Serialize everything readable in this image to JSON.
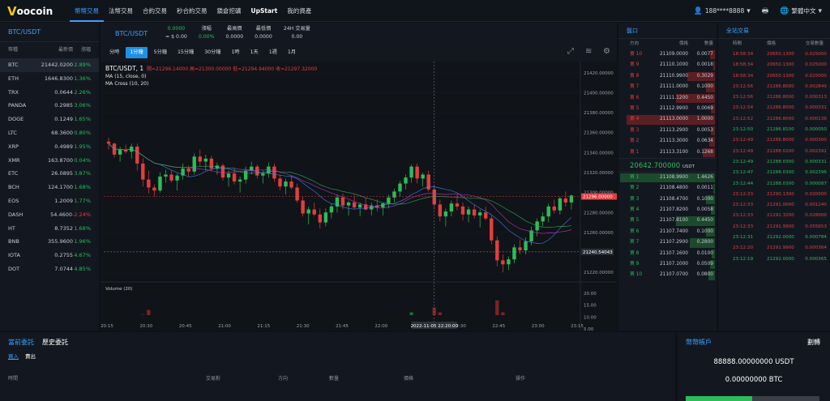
{
  "brand": {
    "logo_letter": "V",
    "logo_text": "oocoin"
  },
  "nav": [
    {
      "label": "幣幣交易",
      "active": true
    },
    {
      "label": "法幣交易"
    },
    {
      "label": "合約交易"
    },
    {
      "label": "秒合約交易"
    },
    {
      "label": "鎖倉挖礦"
    },
    {
      "label": "UpStart",
      "bold": true
    },
    {
      "label": "我的資產"
    }
  ],
  "topright": {
    "user": "188****8888",
    "lang": "繁體中文"
  },
  "markets": {
    "title": "BTC/USDT",
    "headers": [
      "幣種",
      "最新價",
      "漲幅"
    ],
    "rows": [
      {
        "sym": "BTC",
        "price": "21442.0200",
        "chg": "2.89%",
        "dir": "up",
        "sel": true
      },
      {
        "sym": "ETH",
        "price": "1646.8300",
        "chg": "1.36%",
        "dir": "up"
      },
      {
        "sym": "TRX",
        "price": "0.0644",
        "chg": "2.26%",
        "dir": "up"
      },
      {
        "sym": "PANDA",
        "price": "0.2985",
        "chg": "3.06%",
        "dir": "up"
      },
      {
        "sym": "DOGE",
        "price": "0.1249",
        "chg": "1.65%",
        "dir": "up"
      },
      {
        "sym": "LTC",
        "price": "68.3600",
        "chg": "0.80%",
        "dir": "up"
      },
      {
        "sym": "XRP",
        "price": "0.4989",
        "chg": "1.95%",
        "dir": "up"
      },
      {
        "sym": "XMR",
        "price": "163.8700",
        "chg": "0.04%",
        "dir": "up"
      },
      {
        "sym": "ETC",
        "price": "26.0895",
        "chg": "3.87%",
        "dir": "up"
      },
      {
        "sym": "BCH",
        "price": "124.1700",
        "chg": "1.68%",
        "dir": "up"
      },
      {
        "sym": "EOS",
        "price": "1.2009",
        "chg": "1.77%",
        "dir": "up"
      },
      {
        "sym": "DASH",
        "price": "54.4600",
        "chg": "-2.24%",
        "dir": "dn"
      },
      {
        "sym": "HT",
        "price": "8.7352",
        "chg": "1.68%",
        "dir": "up"
      },
      {
        "sym": "BNB",
        "price": "355.9600",
        "chg": "1.96%",
        "dir": "up"
      },
      {
        "sym": "IOTA",
        "price": "0.2755",
        "chg": "4.67%",
        "dir": "up"
      },
      {
        "sym": "DOT",
        "price": "7.0744",
        "chg": "4.85%",
        "dir": "up"
      }
    ]
  },
  "ticker": {
    "symbol": "BTC/USDT",
    "cells": [
      {
        "top": "0.0000",
        "bot": "≈ $ 0.00"
      },
      {
        "top": "漲幅",
        "bot": "0.00%"
      },
      {
        "top": "最高價",
        "bot": "0.0000"
      },
      {
        "top": "最低價",
        "bot": "0.0000"
      },
      {
        "top": "24H 交易量",
        "bot": "0.00"
      }
    ]
  },
  "periods": [
    {
      "label": "分時"
    },
    {
      "label": "1分鐘",
      "active": true
    },
    {
      "label": "5分鐘"
    },
    {
      "label": "15分鐘"
    },
    {
      "label": "30分鐘"
    },
    {
      "label": "1時"
    },
    {
      "label": "1天"
    },
    {
      "label": "1週"
    },
    {
      "label": "1月"
    }
  ],
  "chart_info": {
    "symbol": "BTC/USDT, 1",
    "ohlc": "開=21296.14000  高=21300.00000  低=21294.94000  收=21297.32000",
    "ma1": "MA (15, close, 0)",
    "ma2": "MA Cross (10, 20)",
    "volume_label": "Volume (20)",
    "cursor_time": "2022-11-05 22:20:00",
    "last_price_tag": "21296.00000",
    "cross_price_tag": "21240.54043"
  },
  "chart_data": {
    "type": "candlestick",
    "price_axis": {
      "ticks": [
        21220,
        21240,
        21260,
        21280,
        21300,
        21320,
        21340,
        21360,
        21380,
        21400,
        21420
      ]
    },
    "volume_axis": {
      "ticks": [
        0,
        5,
        10,
        15,
        20
      ]
    },
    "x_ticks": [
      "20:15",
      "20:30",
      "20:45",
      "21:00",
      "21:15",
      "21:30",
      "21:45",
      "22:00",
      "22:15",
      "22:30",
      "22:45",
      "23:00",
      "23:15"
    ],
    "candles": [
      [
        21351,
        21355,
        21343,
        21349,
        6
      ],
      [
        21349,
        21350,
        21335,
        21338,
        8
      ],
      [
        21338,
        21346,
        21331,
        21343,
        4
      ],
      [
        21343,
        21348,
        21339,
        21341,
        3
      ],
      [
        21341,
        21349,
        21334,
        21346,
        5
      ],
      [
        21346,
        21349,
        21322,
        21329,
        9
      ],
      [
        21329,
        21334,
        21306,
        21313,
        11
      ],
      [
        21313,
        21322,
        21299,
        21305,
        13
      ],
      [
        21305,
        21308,
        21296,
        21302,
        7
      ],
      [
        21302,
        21320,
        21300,
        21316,
        10
      ],
      [
        21316,
        21323,
        21310,
        21318,
        5
      ],
      [
        21318,
        21322,
        21310,
        21312,
        4
      ],
      [
        21312,
        21319,
        21302,
        21317,
        6
      ],
      [
        21317,
        21329,
        21313,
        21324,
        7
      ],
      [
        21324,
        21327,
        21316,
        21321,
        4
      ],
      [
        21321,
        21339,
        21318,
        21336,
        8
      ],
      [
        21336,
        21343,
        21326,
        21331,
        6
      ],
      [
        21331,
        21338,
        21322,
        21334,
        5
      ],
      [
        21334,
        21337,
        21321,
        21324,
        4
      ],
      [
        21324,
        21330,
        21318,
        21327,
        3
      ],
      [
        21327,
        21329,
        21312,
        21315,
        5
      ],
      [
        21315,
        21322,
        21306,
        21319,
        4
      ],
      [
        21319,
        21325,
        21308,
        21311,
        4
      ],
      [
        21311,
        21316,
        21300,
        21313,
        6
      ],
      [
        21313,
        21326,
        21309,
        21322,
        5
      ],
      [
        21322,
        21331,
        21318,
        21326,
        4
      ],
      [
        21326,
        21328,
        21314,
        21317,
        3
      ],
      [
        21317,
        21322,
        21309,
        21319,
        3
      ],
      [
        21319,
        21330,
        21315,
        21326,
        4
      ],
      [
        21326,
        21329,
        21311,
        21314,
        5
      ],
      [
        21314,
        21318,
        21302,
        21306,
        6
      ],
      [
        21306,
        21314,
        21298,
        21311,
        5
      ],
      [
        21311,
        21317,
        21303,
        21305,
        4
      ],
      [
        21305,
        21309,
        21290,
        21292,
        7
      ],
      [
        21292,
        21296,
        21276,
        21279,
        10
      ],
      [
        21279,
        21286,
        21268,
        21283,
        9
      ],
      [
        21283,
        21290,
        21276,
        21278,
        6
      ],
      [
        21278,
        21284,
        21264,
        21270,
        8
      ],
      [
        21270,
        21284,
        21266,
        21280,
        6
      ],
      [
        21280,
        21289,
        21274,
        21286,
        5
      ],
      [
        21286,
        21298,
        21280,
        21295,
        7
      ],
      [
        21295,
        21299,
        21283,
        21287,
        4
      ],
      [
        21287,
        21292,
        21277,
        21290,
        3
      ],
      [
        21290,
        21297,
        21283,
        21285,
        4
      ],
      [
        21285,
        21290,
        21276,
        21288,
        3
      ],
      [
        21288,
        21295,
        21282,
        21283,
        3
      ],
      [
        21283,
        21290,
        21277,
        21287,
        2
      ],
      [
        21287,
        21293,
        21281,
        21285,
        3
      ],
      [
        21285,
        21290,
        21277,
        21289,
        2
      ],
      [
        21289,
        21298,
        21284,
        21295,
        4
      ],
      [
        21295,
        21304,
        21290,
        21301,
        6
      ],
      [
        21301,
        21312,
        21296,
        21309,
        8
      ],
      [
        21309,
        21318,
        21303,
        21315,
        9
      ],
      [
        21315,
        21328,
        21310,
        21326,
        12
      ],
      [
        21326,
        21329,
        21309,
        21314,
        8
      ],
      [
        21314,
        21320,
        21306,
        21318,
        6
      ],
      [
        21318,
        21322,
        21301,
        21303,
        9
      ],
      [
        21303,
        21307,
        21283,
        21288,
        14
      ],
      [
        21288,
        21293,
        21271,
        21276,
        12
      ],
      [
        21276,
        21284,
        21266,
        21281,
        8
      ],
      [
        21281,
        21292,
        21276,
        21289,
        6
      ],
      [
        21289,
        21298,
        21282,
        21286,
        5
      ],
      [
        21286,
        21290,
        21272,
        21278,
        6
      ],
      [
        21278,
        21286,
        21270,
        21283,
        5
      ],
      [
        21283,
        21288,
        21274,
        21277,
        4
      ],
      [
        21277,
        21283,
        21265,
        21280,
        5
      ],
      [
        21280,
        21286,
        21272,
        21274,
        6
      ],
      [
        21274,
        21277,
        21248,
        21252,
        10
      ],
      [
        21252,
        21256,
        21226,
        21232,
        17
      ],
      [
        21232,
        21238,
        21220,
        21228,
        12
      ],
      [
        21228,
        21236,
        21222,
        21233,
        7
      ],
      [
        21233,
        21248,
        21229,
        21245,
        6
      ],
      [
        21245,
        21253,
        21238,
        21242,
        5
      ],
      [
        21242,
        21255,
        21238,
        21251,
        6
      ],
      [
        21251,
        21266,
        21247,
        21262,
        8
      ],
      [
        21262,
        21274,
        21256,
        21271,
        9
      ],
      [
        21271,
        21280,
        21266,
        21276,
        6
      ],
      [
        21276,
        21289,
        21270,
        21286,
        8
      ],
      [
        21286,
        21293,
        21279,
        21282,
        6
      ],
      [
        21282,
        21296,
        21278,
        21294,
        7
      ],
      [
        21294,
        21301,
        21286,
        21290,
        5
      ],
      [
        21290,
        21298,
        21283,
        21297,
        4
      ]
    ]
  },
  "orderbook": {
    "title": "盤口",
    "headers": [
      "方向",
      "價格",
      "數量"
    ],
    "asks": [
      {
        "lv": "賣 10",
        "price": "21109.0000",
        "amt": "0.0077",
        "bar": 0.05
      },
      {
        "lv": "賣 9",
        "price": "21110.1000",
        "amt": "0.0018",
        "bar": 0.02
      },
      {
        "lv": "賣 8",
        "price": "21110.9900",
        "amt": "0.3029",
        "bar": 0.28
      },
      {
        "lv": "賣 7",
        "price": "21111.0000",
        "amt": "0.1000",
        "bar": 0.09
      },
      {
        "lv": "賣 6",
        "price": "21111.1200",
        "amt": "0.4450",
        "bar": 0.4
      },
      {
        "lv": "賣 5",
        "price": "21112.9900",
        "amt": "0.0069",
        "bar": 0.04
      },
      {
        "lv": "賣 4",
        "price": "21113.0000",
        "amt": "1.0000",
        "bar": 0.9
      },
      {
        "lv": "賣 3",
        "price": "21113.2900",
        "amt": "0.0053",
        "bar": 0.04
      },
      {
        "lv": "賣 2",
        "price": "21113.3000",
        "amt": "0.0634",
        "bar": 0.06
      },
      {
        "lv": "賣 1",
        "price": "21113.3100",
        "amt": "0.1268",
        "bar": 0.12
      }
    ],
    "mid_price": "20642.700000",
    "mid_unit": "USDT",
    "bids": [
      {
        "lv": "買 1",
        "price": "21108.9900",
        "amt": "1.4626",
        "bar": 0.97
      },
      {
        "lv": "買 2",
        "price": "21108.4800",
        "amt": "0.0011",
        "bar": 0.02
      },
      {
        "lv": "買 3",
        "price": "21108.4700",
        "amt": "0.1000",
        "bar": 0.09
      },
      {
        "lv": "買 4",
        "price": "21107.8200",
        "amt": "0.0058",
        "bar": 0.04
      },
      {
        "lv": "買 5",
        "price": "21107.8100",
        "amt": "0.4450",
        "bar": 0.4
      },
      {
        "lv": "買 6",
        "price": "21107.7400",
        "amt": "0.1000",
        "bar": 0.09
      },
      {
        "lv": "買 7",
        "price": "21107.2900",
        "amt": "0.2800",
        "bar": 0.26
      },
      {
        "lv": "買 8",
        "price": "21107.1600",
        "amt": "0.0100",
        "bar": 0.03
      },
      {
        "lv": "買 9",
        "price": "21107.1000",
        "amt": "0.0509",
        "bar": 0.05
      },
      {
        "lv": "買 10",
        "price": "21107.0700",
        "amt": "0.0800",
        "bar": 0.07
      }
    ]
  },
  "trades": {
    "title": "全站交易",
    "headers": [
      "時間",
      "價格",
      "交易數量"
    ],
    "rows": [
      {
        "t": "18:58:34",
        "p": "20650.1300",
        "a": "0.025000",
        "d": "dn"
      },
      {
        "t": "18:58:34",
        "p": "20650.1300",
        "a": "0.025000",
        "d": "dn"
      },
      {
        "t": "18:58:34",
        "p": "20650.1300",
        "a": "0.025000",
        "d": "dn"
      },
      {
        "t": "23:12:56",
        "p": "21286.8000",
        "a": "0.002849",
        "d": "dn"
      },
      {
        "t": "23:12:56",
        "p": "21286.8000",
        "a": "0.000313",
        "d": "dn"
      },
      {
        "t": "23:12:54",
        "p": "21286.8000",
        "a": "0.000331",
        "d": "dn"
      },
      {
        "t": "23:12:52",
        "p": "21286.8000",
        "a": "0.000136",
        "d": "dn"
      },
      {
        "t": "23:12:50",
        "p": "21286.8100",
        "a": "0.000050",
        "d": "up"
      },
      {
        "t": "23:12:49",
        "p": "21286.8000",
        "a": "0.000300",
        "d": "dn"
      },
      {
        "t": "23:12:49",
        "p": "21288.0200",
        "a": "0.002391",
        "d": "dn"
      },
      {
        "t": "23:12:49",
        "p": "21288.0300",
        "a": "0.000331",
        "d": "up"
      },
      {
        "t": "23:12:47",
        "p": "21288.0300",
        "a": "0.002396",
        "d": "up"
      },
      {
        "t": "23:12:44",
        "p": "21288.0300",
        "a": "0.000087",
        "d": "up"
      },
      {
        "t": "23:12:33",
        "p": "21290.1300",
        "a": "0.020000",
        "d": "dn"
      },
      {
        "t": "23:12:33",
        "p": "21291.0000",
        "a": "0.001240",
        "d": "dn"
      },
      {
        "t": "23:12:33",
        "p": "21291.3200",
        "a": "0.028000",
        "d": "dn"
      },
      {
        "t": "23:12:33",
        "p": "21291.9900",
        "a": "0.055653",
        "d": "dn"
      },
      {
        "t": "23:12:31",
        "p": "21292.0000",
        "a": "0.000784",
        "d": "up"
      },
      {
        "t": "23:12:20",
        "p": "21291.9900",
        "a": "0.000364",
        "d": "dn"
      },
      {
        "t": "23:12:19",
        "p": "21292.0000",
        "a": "0.000365",
        "d": "up"
      }
    ]
  },
  "orders": {
    "tab_current": "當前委託",
    "tab_history": "歷史委託",
    "sub_buy": "買入",
    "sub_sell": "賣出",
    "columns": [
      "時間",
      "交易對",
      "方向",
      "數量",
      "價格",
      "操作"
    ]
  },
  "account": {
    "title": "幣幣帳戶",
    "action": "劃轉",
    "usdt": "88888.00000000 USDT",
    "btc": "0.00000000 BTC"
  }
}
